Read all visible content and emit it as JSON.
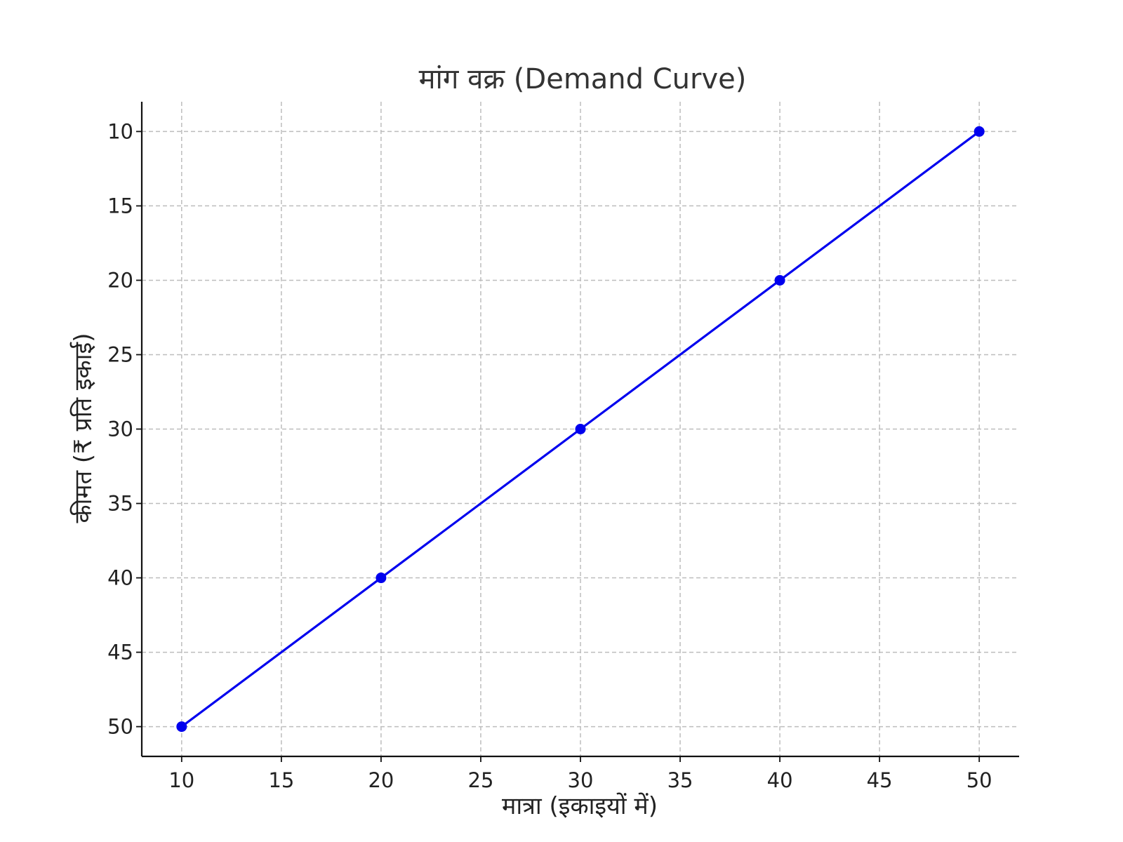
{
  "chart_data": {
    "type": "line",
    "title": "मांग वक्र (Demand Curve)",
    "xlabel": "मात्रा (इकाइयों में)",
    "ylabel": "कीमत (₹ प्रति इकाई)",
    "x_ticks": [
      "10",
      "15",
      "20",
      "25",
      "30",
      "35",
      "40",
      "45",
      "50"
    ],
    "y_ticks": [
      "10",
      "15",
      "20",
      "25",
      "30",
      "35",
      "40",
      "45",
      "50"
    ],
    "xlim": [
      8,
      52
    ],
    "ylim": [
      52,
      8
    ],
    "y_inverted": true,
    "grid": true,
    "series": [
      {
        "color": "#0000ee",
        "marker": "circle",
        "x": [
          10,
          20,
          30,
          40,
          50
        ],
        "y": [
          50,
          40,
          30,
          20,
          10
        ]
      }
    ]
  }
}
